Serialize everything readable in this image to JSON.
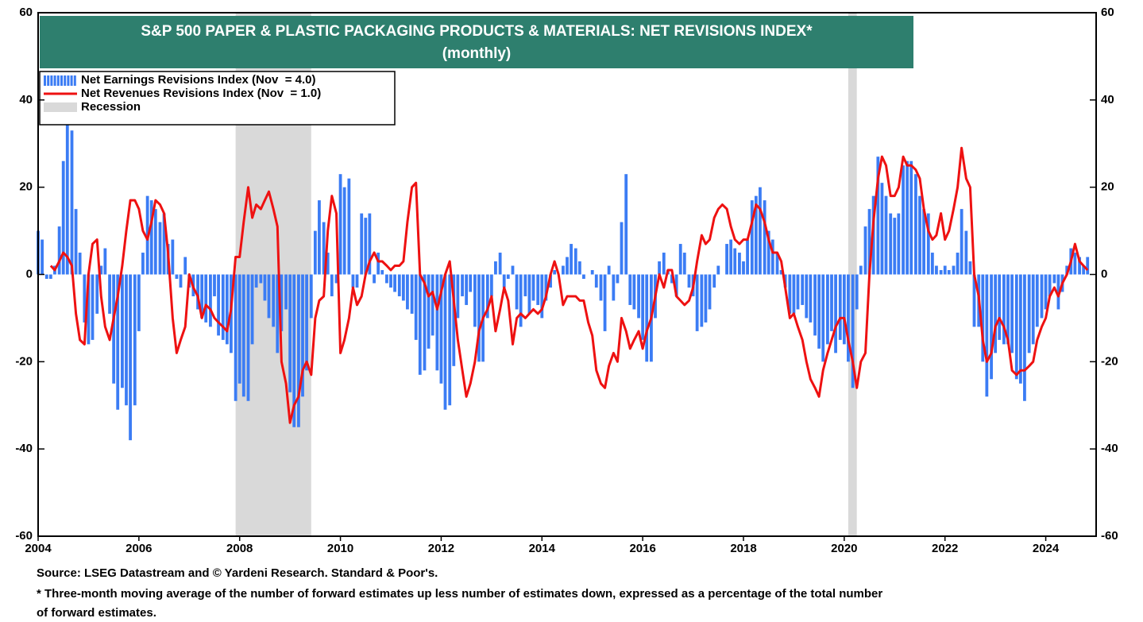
{
  "chart_data": {
    "type": "bar",
    "title": "S&P 500 PAPER & PLASTIC PACKAGING PRODUCTS & MATERIALS: NET REVISIONS INDEX*",
    "subtitle": "(monthly)",
    "source": "Source: LSEG Datastream and © Yardeni Research. Standard & Poor's.",
    "footnote": [
      "* Three-month moving average of the number of forward estimates up less number of estimates down, expressed as a percentage of the total number",
      "of forward estimates."
    ],
    "xlim": [
      2004,
      2025
    ],
    "xticks": [
      2004,
      2006,
      2008,
      2010,
      2012,
      2014,
      2016,
      2018,
      2020,
      2022,
      2024
    ],
    "ylim": [
      -60,
      60
    ],
    "yticks": [
      -60,
      -40,
      -20,
      0,
      20,
      40,
      60
    ],
    "y2lim": [
      -60,
      60
    ],
    "y2ticks": [
      -60,
      -40,
      -20,
      0,
      20,
      40,
      60
    ],
    "grid": false,
    "legend": "upper left",
    "recession_name": "Recession",
    "recession_color": "#d9d9d9",
    "recessions": [
      [
        2007.92,
        2009.42
      ],
      [
        2020.08,
        2020.25
      ]
    ],
    "x": [
      2004,
      2004.08,
      2004.17,
      2004.25,
      2004.33,
      2004.42,
      2004.5,
      2004.58,
      2004.67,
      2004.75,
      2004.83,
      2004.92,
      2005,
      2005.08,
      2005.17,
      2005.25,
      2005.33,
      2005.42,
      2005.5,
      2005.58,
      2005.67,
      2005.75,
      2005.83,
      2005.92,
      2006,
      2006.08,
      2006.17,
      2006.25,
      2006.33,
      2006.42,
      2006.5,
      2006.58,
      2006.67,
      2006.75,
      2006.83,
      2006.92,
      2007,
      2007.08,
      2007.17,
      2007.25,
      2007.33,
      2007.42,
      2007.5,
      2007.58,
      2007.67,
      2007.75,
      2007.83,
      2007.92,
      2008,
      2008.08,
      2008.17,
      2008.25,
      2008.33,
      2008.42,
      2008.5,
      2008.58,
      2008.67,
      2008.75,
      2008.83,
      2008.92,
      2009,
      2009.08,
      2009.17,
      2009.25,
      2009.33,
      2009.42,
      2009.5,
      2009.58,
      2009.67,
      2009.75,
      2009.83,
      2009.92,
      2010,
      2010.08,
      2010.17,
      2010.25,
      2010.33,
      2010.42,
      2010.5,
      2010.58,
      2010.67,
      2010.75,
      2010.83,
      2010.92,
      2011,
      2011.08,
      2011.17,
      2011.25,
      2011.33,
      2011.42,
      2011.5,
      2011.58,
      2011.67,
      2011.75,
      2011.83,
      2011.92,
      2012,
      2012.08,
      2012.17,
      2012.25,
      2012.33,
      2012.42,
      2012.5,
      2012.58,
      2012.67,
      2012.75,
      2012.83,
      2012.92,
      2013,
      2013.08,
      2013.17,
      2013.25,
      2013.33,
      2013.42,
      2013.5,
      2013.58,
      2013.67,
      2013.75,
      2013.83,
      2013.92,
      2014,
      2014.08,
      2014.17,
      2014.25,
      2014.33,
      2014.42,
      2014.5,
      2014.58,
      2014.67,
      2014.75,
      2014.83,
      2014.92,
      2015,
      2015.08,
      2015.17,
      2015.25,
      2015.33,
      2015.42,
      2015.5,
      2015.58,
      2015.67,
      2015.75,
      2015.83,
      2015.92,
      2016,
      2016.08,
      2016.17,
      2016.25,
      2016.33,
      2016.42,
      2016.5,
      2016.58,
      2016.67,
      2016.75,
      2016.83,
      2016.92,
      2017,
      2017.08,
      2017.17,
      2017.25,
      2017.33,
      2017.42,
      2017.5,
      2017.58,
      2017.67,
      2017.75,
      2017.83,
      2017.92,
      2018,
      2018.08,
      2018.17,
      2018.25,
      2018.33,
      2018.42,
      2018.5,
      2018.58,
      2018.67,
      2018.75,
      2018.83,
      2018.92,
      2019,
      2019.08,
      2019.17,
      2019.25,
      2019.33,
      2019.42,
      2019.5,
      2019.58,
      2019.67,
      2019.75,
      2019.83,
      2019.92,
      2020,
      2020.08,
      2020.17,
      2020.25,
      2020.33,
      2020.42,
      2020.5,
      2020.58,
      2020.67,
      2020.75,
      2020.83,
      2020.92,
      2021,
      2021.08,
      2021.17,
      2021.25,
      2021.33,
      2021.42,
      2021.5,
      2021.58,
      2021.67,
      2021.75,
      2021.83,
      2021.92,
      2022,
      2022.08,
      2022.17,
      2022.25,
      2022.33,
      2022.42,
      2022.5,
      2022.58,
      2022.67,
      2022.75,
      2022.83,
      2022.92,
      2023,
      2023.08,
      2023.17,
      2023.25,
      2023.33,
      2023.42,
      2023.5,
      2023.58,
      2023.67,
      2023.75,
      2023.83,
      2023.92,
      2024,
      2024.08,
      2024.17,
      2024.25,
      2024.33,
      2024.42,
      2024.5,
      2024.58,
      2024.67,
      2024.75,
      2024.83
    ],
    "series": [
      {
        "name": "Net Earnings Revisions Index (Nov  = 4.0)",
        "type": "bar",
        "color": "#3b7cf4",
        "values": [
          10,
          8,
          -1,
          -1,
          2,
          11,
          26,
          35,
          33,
          15,
          5,
          -11,
          -16,
          -15,
          -9,
          2,
          6,
          -9,
          -25,
          -31,
          -26,
          -30,
          -38,
          -30,
          -13,
          5,
          18,
          17,
          15,
          12,
          14,
          7,
          8,
          -1,
          -3,
          4,
          -3,
          -5,
          -8,
          -10,
          -11,
          -12,
          -5,
          -14,
          -15,
          -16,
          -18,
          -29,
          -25,
          -28,
          -29,
          -16,
          -3,
          -2,
          -6,
          -10,
          -12,
          -18,
          -13,
          -8,
          -27,
          -35,
          -35,
          -28,
          -22,
          -10,
          10,
          17,
          12,
          5,
          -5,
          -2,
          23,
          20,
          22,
          -3,
          -3,
          14,
          13,
          14,
          -2,
          5,
          1,
          -2,
          -3,
          -4,
          -5,
          -6,
          -8,
          -9,
          -15,
          -23,
          -22,
          -17,
          -14,
          -22,
          -25,
          -31,
          -30,
          -21,
          -10,
          -5,
          -7,
          -4,
          -12,
          -20,
          -20,
          -10,
          -5,
          3,
          5,
          -3,
          -1,
          2,
          -8,
          -12,
          -5,
          -9,
          -6,
          -7,
          -10,
          -6,
          -3,
          1,
          0,
          2,
          4,
          7,
          6,
          3,
          -1,
          0,
          1,
          -3,
          -6,
          -13,
          2,
          -6,
          -2,
          12,
          23,
          -7,
          -8,
          -10,
          -15,
          -20,
          -20,
          -10,
          3,
          5,
          1,
          -2,
          -5,
          7,
          5,
          -3,
          -5,
          -13,
          -12,
          -11,
          -8,
          -3,
          2,
          0,
          7,
          8,
          6,
          5,
          3,
          8,
          17,
          18,
          20,
          17,
          10,
          8,
          5,
          1,
          -3,
          -9,
          -9,
          -8,
          -7,
          -10,
          -11,
          -14,
          -17,
          -20,
          -16,
          -13,
          -18,
          -15,
          -16,
          -20,
          -26,
          -8,
          2,
          11,
          15,
          18,
          27,
          21,
          18,
          14,
          13,
          14,
          25,
          26,
          26,
          23,
          18,
          15,
          14,
          5,
          2,
          1,
          2,
          1,
          2,
          5,
          15,
          10,
          3,
          -12,
          -12,
          -20,
          -28,
          -24,
          -18,
          -15,
          -16,
          -16,
          -18,
          -24,
          -25,
          -29,
          -18,
          -16,
          -12,
          -10,
          -8,
          -5,
          -2,
          -8,
          -4,
          2,
          6,
          5,
          4,
          2,
          4
        ]
      },
      {
        "name": "Net Revenues Revisions Index (Nov  = 1.0)",
        "type": "line",
        "color": "#ee1111",
        "values": [
          null,
          null,
          null,
          2,
          1,
          3,
          5,
          4,
          2,
          -9,
          -15,
          -16,
          0,
          7,
          8,
          -5,
          -12,
          -15,
          -10,
          -5,
          2,
          10,
          17,
          17,
          15,
          10,
          8,
          12,
          17,
          16,
          14,
          5,
          -10,
          -18,
          -15,
          -12,
          0,
          -3,
          -5,
          -10,
          -7,
          -8,
          -10,
          -11,
          -12,
          -13,
          -8,
          4,
          4,
          12,
          20,
          13,
          16,
          15,
          17,
          19,
          15,
          11,
          -20,
          -25,
          -34,
          -30,
          -28,
          -22,
          -20,
          -23,
          -10,
          -6,
          -5,
          10,
          18,
          14,
          -18,
          -15,
          -10,
          -3,
          -7,
          -5,
          0,
          3,
          5,
          3,
          3,
          2,
          1,
          2,
          2,
          3,
          12,
          20,
          21,
          0,
          -2,
          -5,
          -4,
          -8,
          -4,
          0,
          3,
          -6,
          -15,
          -22,
          -28,
          -25,
          -20,
          -13,
          -10,
          -8,
          -5,
          -13,
          -8,
          -3,
          -6,
          -16,
          -10,
          -9,
          -10,
          -9,
          -8,
          -9,
          -8,
          -5,
          0,
          3,
          0,
          -7,
          -5,
          -5,
          -5,
          -6,
          -6,
          -11,
          -14,
          -22,
          -25,
          -26,
          -21,
          -18,
          -20,
          -10,
          -13,
          -17,
          -15,
          -13,
          -17,
          -13,
          -10,
          -5,
          0,
          -3,
          1,
          1,
          -5,
          -6,
          -7,
          -6,
          -3,
          3,
          9,
          7,
          8,
          13,
          15,
          16,
          15,
          11,
          8,
          7,
          8,
          8,
          12,
          16,
          15,
          12,
          8,
          5,
          5,
          3,
          -3,
          -10,
          -9,
          -12,
          -15,
          -20,
          -24,
          -26,
          -28,
          -22,
          -18,
          -15,
          -12,
          -10,
          -10,
          -15,
          -20,
          -26,
          -20,
          -18,
          0,
          12,
          22,
          27,
          25,
          18,
          18,
          20,
          27,
          25,
          25,
          24,
          22,
          15,
          10,
          8,
          9,
          14,
          8,
          10,
          15,
          20,
          29,
          22,
          20,
          0,
          -5,
          -15,
          -20,
          -18,
          -12,
          -10,
          -12,
          -15,
          -22,
          -23,
          -22,
          -22,
          -21,
          -20,
          -15,
          -12,
          -10,
          -5,
          -3,
          -5,
          -2,
          0,
          3,
          7,
          3,
          2,
          1
        ]
      }
    ]
  }
}
